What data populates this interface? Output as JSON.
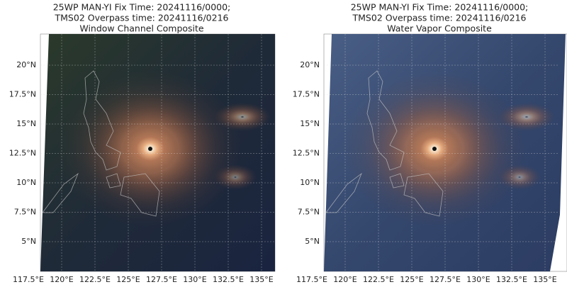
{
  "panels": [
    {
      "title_lines": [
        "25WP MAN-YI Fix Time: 20241116/0000;",
        "TMS02 Overpass time: 20241116/0216",
        "Window Channel Composite"
      ],
      "lat_labels": [
        "20°N",
        "17.5°N",
        "15°N",
        "12.5°N",
        "10°N",
        "7.5°N",
        "5°N"
      ],
      "lon_labels": [
        "117.5°E",
        "120°E",
        "122.5°E",
        "125°E",
        "127.5°E",
        "130°E",
        "132.5°E",
        "135°E"
      ]
    },
    {
      "title_lines": [
        "25WP MAN-YI Fix Time: 20241116/0000;",
        "TMS02 Overpass time: 20241116/0216",
        "Water Vapor Composite"
      ],
      "lat_labels": [
        "20°N",
        "17.5°N",
        "15°N",
        "12.5°N",
        "10°N",
        "7.5°N",
        "5°N"
      ],
      "lon_labels": [
        "117.5°E",
        "120°E",
        "122.5°E",
        "125°E",
        "127.5°E",
        "130°E",
        "132.5°E",
        "135°E"
      ]
    }
  ]
}
